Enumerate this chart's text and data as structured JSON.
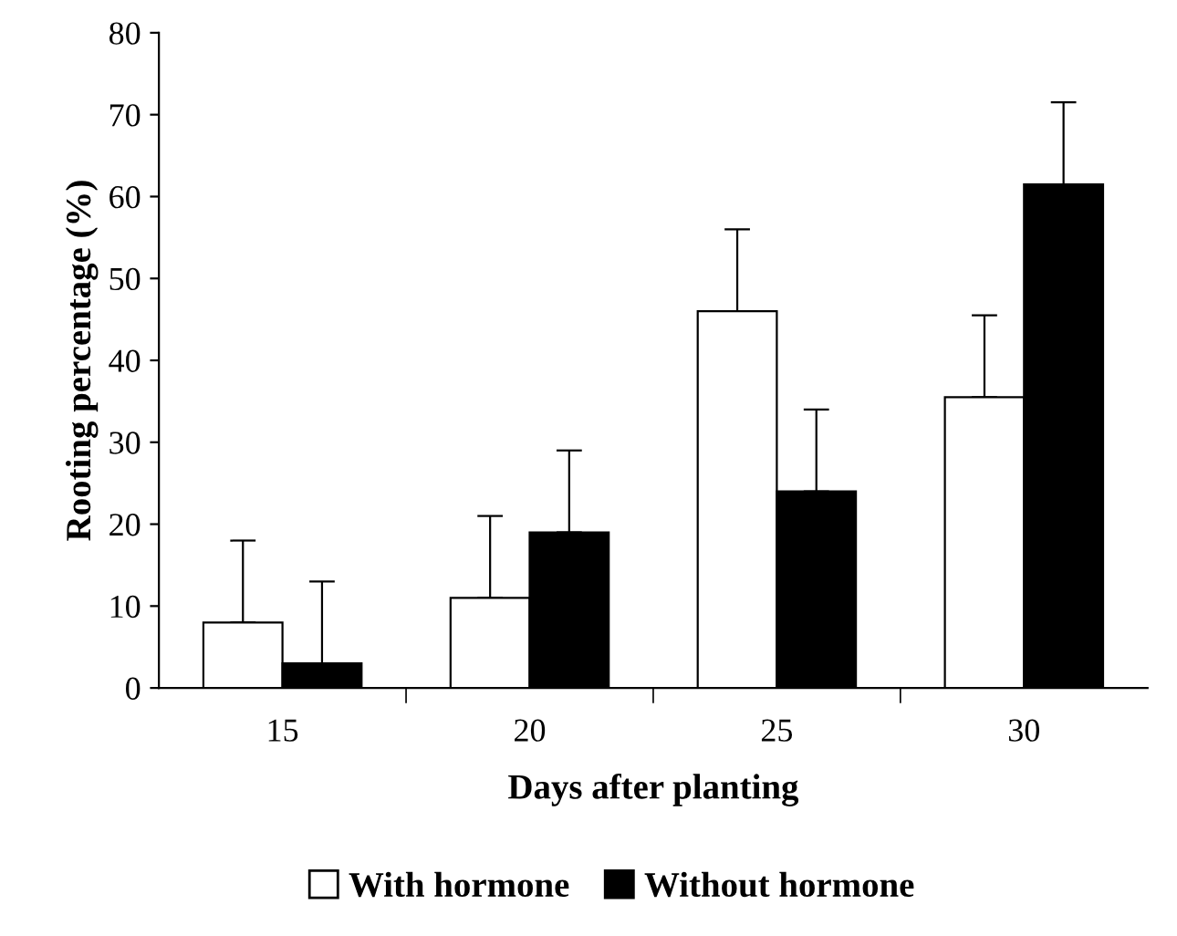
{
  "chart_data": {
    "type": "bar",
    "xlabel": "Days after planting",
    "ylabel": "Rooting percentage (%)",
    "categories": [
      "15",
      "20",
      "25",
      "30"
    ],
    "series": [
      {
        "name": "With hormone",
        "color": "#ffffff",
        "values": [
          8,
          11,
          46,
          35.5
        ],
        "errors": [
          [
            8,
            18
          ],
          [
            11,
            21
          ],
          [
            46,
            56
          ],
          [
            35.5,
            45.5
          ]
        ]
      },
      {
        "name": "Without hormone",
        "color": "#000000",
        "values": [
          3,
          19,
          24,
          61.5
        ],
        "errors": [
          [
            3,
            13
          ],
          [
            19,
            29
          ],
          [
            24,
            34
          ],
          [
            61.5,
            71.5
          ]
        ]
      }
    ],
    "ylim": [
      0,
      80
    ],
    "yticks": [
      0,
      10,
      20,
      30,
      40,
      50,
      60,
      70,
      80
    ],
    "grid": false,
    "legend": "bottom"
  }
}
